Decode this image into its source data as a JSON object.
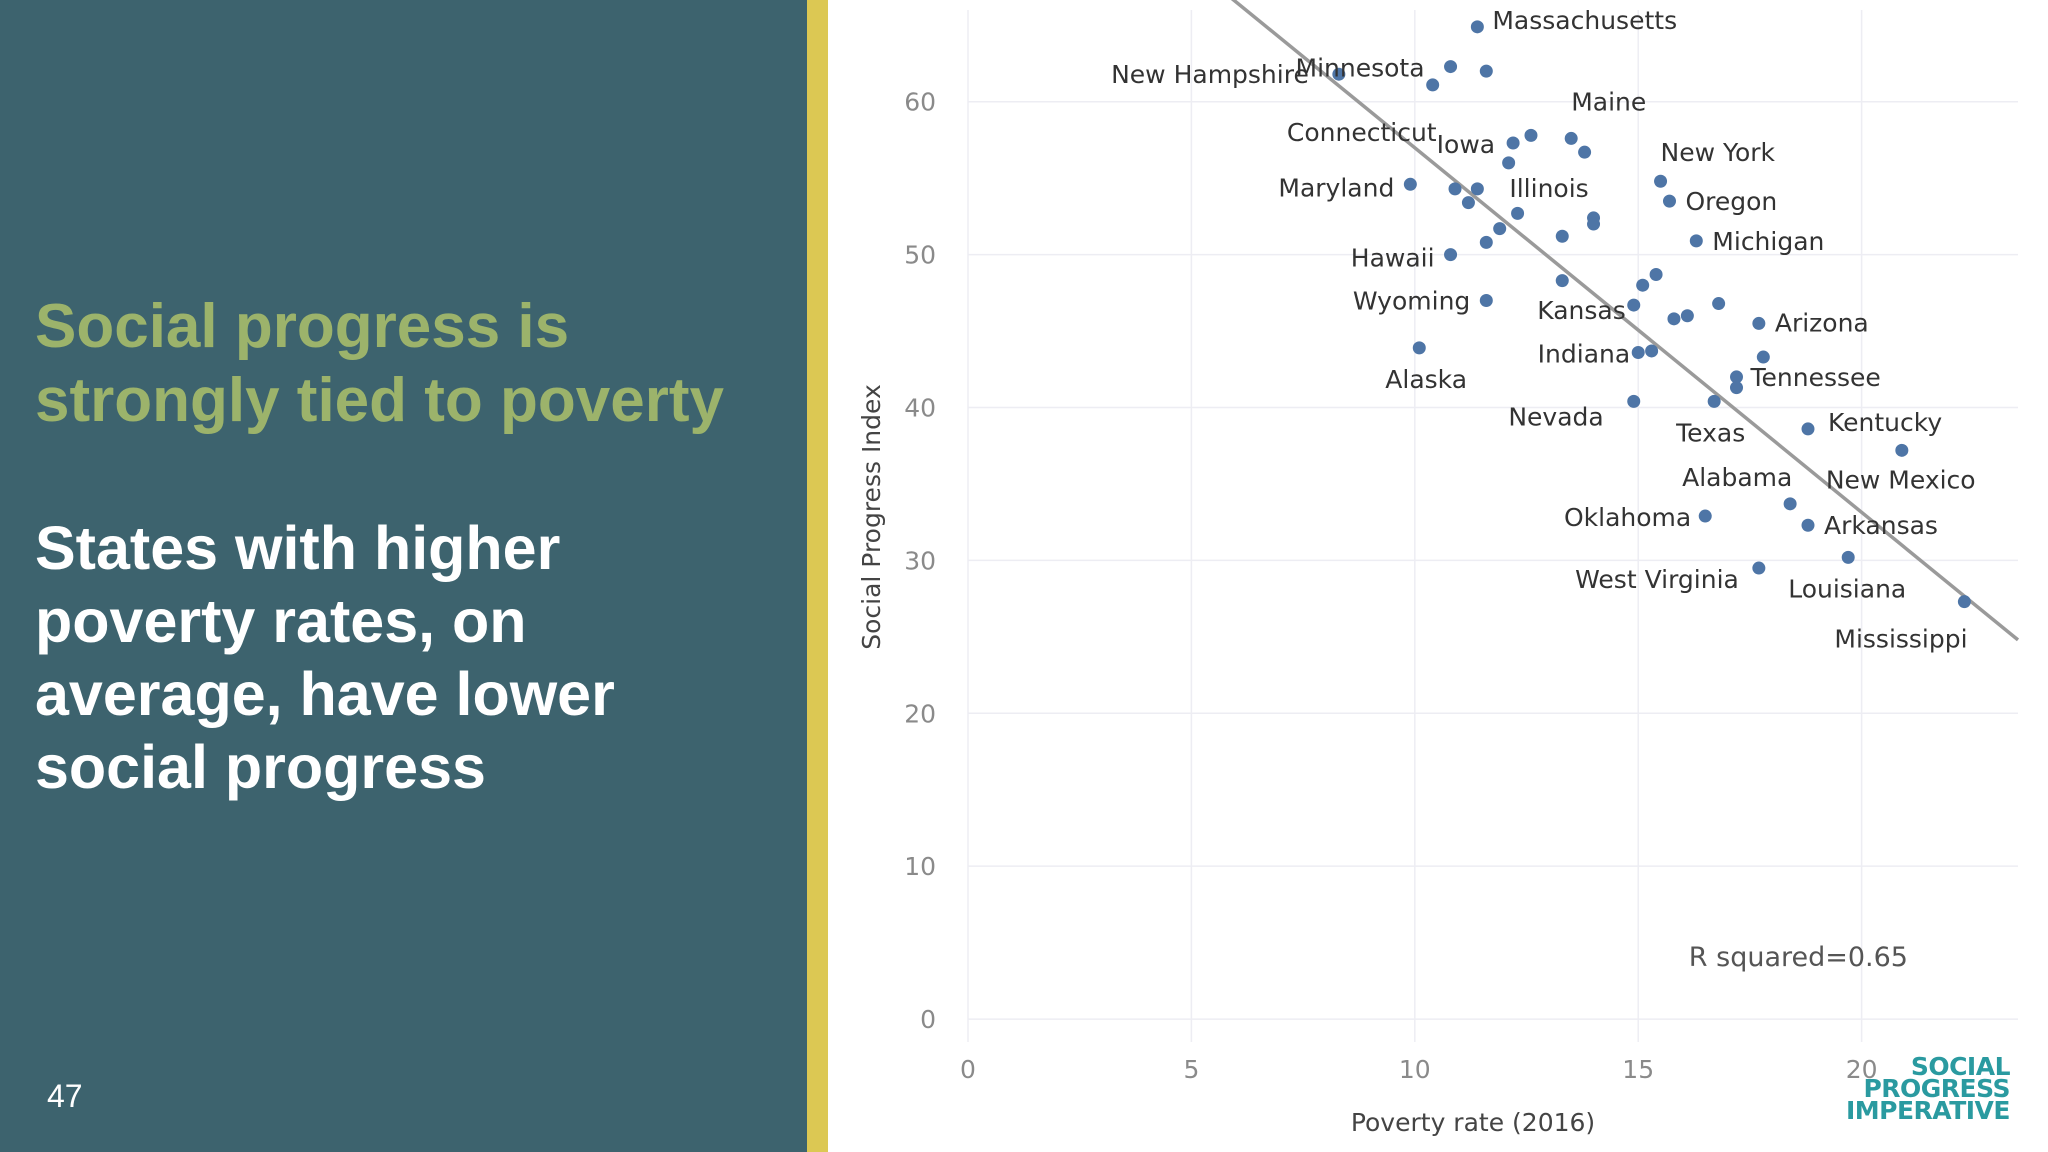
{
  "slide": {
    "headline": "Social progress is strongly tied to poverty",
    "subtext": "States with higher poverty rates, on average, have lower social progress",
    "slide_number": "47",
    "logo_lines": [
      "SOCIAL",
      "PROGRESS",
      "IMPERATIVE"
    ],
    "colors": {
      "panel_bg": "#3d636e",
      "headline": "#9cb36b",
      "accent_bar": "#dcc853",
      "point": "#4e75a6",
      "trend_line": "#9a9a9a",
      "logo": "#2a9aa0"
    }
  },
  "chart_data": {
    "type": "scatter",
    "xlabel": "Poverty rate (2016)",
    "ylabel": "Social Progress Index",
    "xlim": [
      0,
      23.5
    ],
    "ylim": [
      -1.5,
      66
    ],
    "xticks": [
      0,
      5,
      10,
      15,
      20
    ],
    "yticks": [
      0,
      10,
      20,
      30,
      40,
      50,
      60
    ],
    "grid": true,
    "annotation": "R squared=0.65",
    "trend_line": {
      "x": [
        5.8,
        23.5
      ],
      "y": [
        67,
        24.8
      ]
    },
    "points": [
      {
        "x": 11.4,
        "y": 64.9,
        "label": "Massachusetts"
      },
      {
        "x": 10.8,
        "y": 62.3,
        "label": "Minnesota"
      },
      {
        "x": 8.3,
        "y": 61.8,
        "label": "New Hampshire"
      },
      {
        "x": 11.6,
        "y": 62.0,
        "label": ""
      },
      {
        "x": 10.4,
        "y": 61.1,
        "label": ""
      },
      {
        "x": 13.5,
        "y": 57.6,
        "label": "Maine"
      },
      {
        "x": 12.6,
        "y": 57.8,
        "label": ""
      },
      {
        "x": 12.2,
        "y": 57.3,
        "label": "Iowa"
      },
      {
        "x": 13.8,
        "y": 56.7,
        "label": ""
      },
      {
        "x": 12.1,
        "y": 56.0,
        "label": "Connecticut"
      },
      {
        "x": 15.5,
        "y": 54.8,
        "label": "New York"
      },
      {
        "x": 9.9,
        "y": 54.6,
        "label": "Maryland"
      },
      {
        "x": 10.9,
        "y": 54.3,
        "label": ""
      },
      {
        "x": 11.4,
        "y": 54.3,
        "label": "Illinois"
      },
      {
        "x": 11.2,
        "y": 53.4,
        "label": ""
      },
      {
        "x": 15.7,
        "y": 53.5,
        "label": "Oregon"
      },
      {
        "x": 12.3,
        "y": 52.7,
        "label": ""
      },
      {
        "x": 14.0,
        "y": 52.4,
        "label": ""
      },
      {
        "x": 14.0,
        "y": 52.0,
        "label": ""
      },
      {
        "x": 11.9,
        "y": 51.7,
        "label": ""
      },
      {
        "x": 13.3,
        "y": 51.2,
        "label": ""
      },
      {
        "x": 16.3,
        "y": 50.9,
        "label": "Michigan"
      },
      {
        "x": 11.6,
        "y": 50.8,
        "label": ""
      },
      {
        "x": 10.8,
        "y": 50.0,
        "label": "Hawaii"
      },
      {
        "x": 15.4,
        "y": 48.7,
        "label": ""
      },
      {
        "x": 13.3,
        "y": 48.3,
        "label": ""
      },
      {
        "x": 15.1,
        "y": 48.0,
        "label": ""
      },
      {
        "x": 11.6,
        "y": 47.0,
        "label": "Wyoming"
      },
      {
        "x": 14.9,
        "y": 46.7,
        "label": "Kansas"
      },
      {
        "x": 16.8,
        "y": 46.8,
        "label": ""
      },
      {
        "x": 16.1,
        "y": 46.0,
        "label": ""
      },
      {
        "x": 15.8,
        "y": 45.8,
        "label": ""
      },
      {
        "x": 17.7,
        "y": 45.5,
        "label": "Arizona"
      },
      {
        "x": 10.1,
        "y": 43.9,
        "label": "Alaska"
      },
      {
        "x": 15.3,
        "y": 43.7,
        "label": ""
      },
      {
        "x": 15.0,
        "y": 43.6,
        "label": "Indiana"
      },
      {
        "x": 17.8,
        "y": 43.3,
        "label": ""
      },
      {
        "x": 17.2,
        "y": 42.0,
        "label": "Tennessee"
      },
      {
        "x": 17.2,
        "y": 41.3,
        "label": ""
      },
      {
        "x": 14.9,
        "y": 40.4,
        "label": "Nevada"
      },
      {
        "x": 16.7,
        "y": 40.4,
        "label": "Texas"
      },
      {
        "x": 18.8,
        "y": 38.6,
        "label": "Kentucky"
      },
      {
        "x": 20.9,
        "y": 37.2,
        "label": "New Mexico"
      },
      {
        "x": 18.4,
        "y": 33.7,
        "label": "Alabama"
      },
      {
        "x": 16.5,
        "y": 32.9,
        "label": "Oklahoma"
      },
      {
        "x": 18.8,
        "y": 32.3,
        "label": "Arkansas"
      },
      {
        "x": 19.7,
        "y": 30.2,
        "label": "Louisiana"
      },
      {
        "x": 17.7,
        "y": 29.5,
        "label": "West Virginia"
      },
      {
        "x": 22.3,
        "y": 27.3,
        "label": "Mississippi"
      }
    ]
  }
}
